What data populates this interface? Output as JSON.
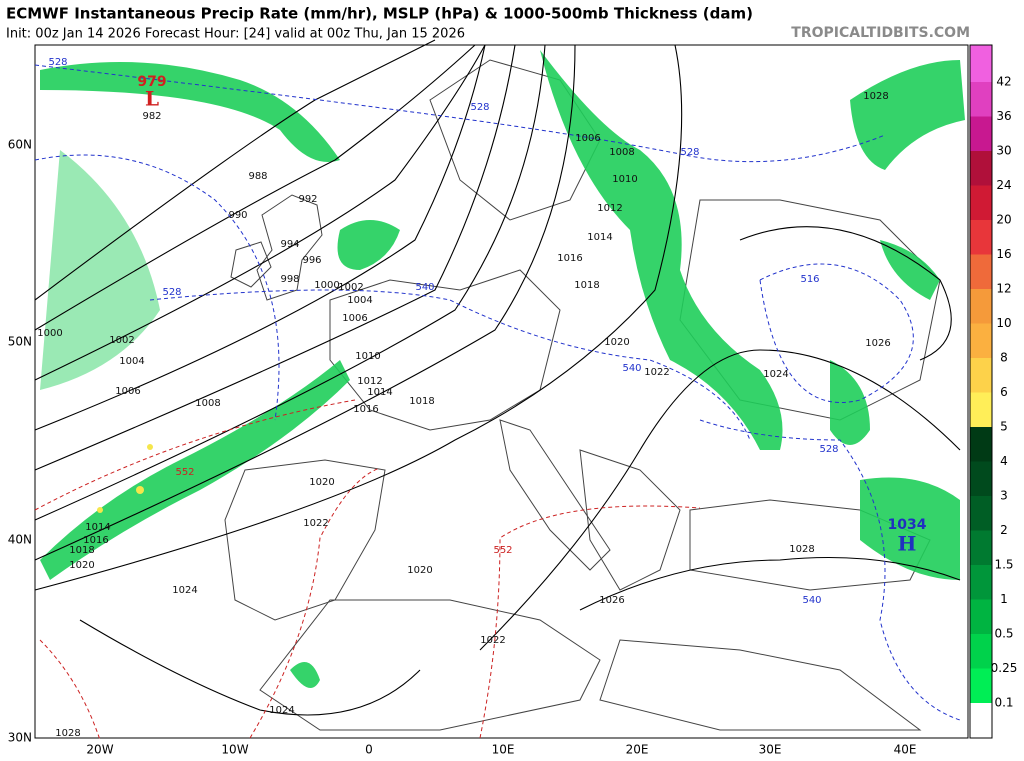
{
  "header": {
    "title": "ECMWF Instantaneous Precip Rate (mm/hr), MSLP (hPa) & 1000-500mb Thickness (dam)",
    "init": "Init: 00z Jan 14 2026   Forecast Hour: [24]   valid at 00z Thu, Jan 15 2026",
    "source": "TROPICALTIDBITS.COM"
  },
  "latitude_labels": [
    "60N",
    "50N",
    "40N",
    "30N"
  ],
  "longitude_labels": [
    "20W",
    "10W",
    "0",
    "10E",
    "20E",
    "30E",
    "40E"
  ],
  "colorbar_labels": [
    "42",
    "36",
    "30",
    "24",
    "20",
    "16",
    "12",
    "10",
    "8",
    "6",
    "5",
    "4",
    "3",
    "2",
    "1.5",
    "1",
    "0.5",
    "0.25",
    "0.1"
  ],
  "pressure_centers": [
    {
      "letter": "L",
      "value": "979",
      "note": "982"
    },
    {
      "letter": "H",
      "value": "1034"
    }
  ],
  "isobar_labels": [
    "988",
    "990",
    "992",
    "994",
    "996",
    "998",
    "1000",
    "1002",
    "1004",
    "1006",
    "1008",
    "1010",
    "1012",
    "1014",
    "1016",
    "1018",
    "1020",
    "1022",
    "1024",
    "1026",
    "1028",
    "1014",
    "1016",
    "1018",
    "1020",
    "1022",
    "1024",
    "1026",
    "1028",
    "1006",
    "1008",
    "1010",
    "1012",
    "1020",
    "1022",
    "1024",
    "1028",
    "1020",
    "1018",
    "1016",
    "1014",
    "1000",
    "1002",
    "1004",
    "1006"
  ],
  "thickness_labels": [
    "528",
    "528",
    "528",
    "528",
    "540",
    "516",
    "540",
    "528",
    "552",
    "552",
    "540"
  ]
}
